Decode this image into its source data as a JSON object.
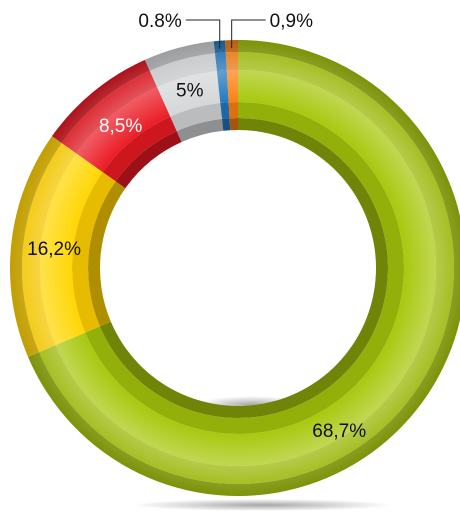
{
  "chart_data": {
    "type": "pie",
    "variant": "donut",
    "title": "",
    "legend": "none",
    "start_angle_deg": 0,
    "direction": "clockwise",
    "slices": [
      {
        "label": "68,7%",
        "value": 68.7,
        "color": "#9bb80a"
      },
      {
        "label": "16,2%",
        "value": 16.2,
        "color": "#f3c600"
      },
      {
        "label": "8,5%",
        "value": 8.5,
        "color": "#d91720"
      },
      {
        "label": "5%",
        "value": 5.0,
        "color": "#c4c6c8"
      },
      {
        "label": "0.8%",
        "value": 0.8,
        "color": "#1f6fb0"
      },
      {
        "label": "0,9%",
        "value": 0.9,
        "color": "#e8760f"
      }
    ]
  }
}
